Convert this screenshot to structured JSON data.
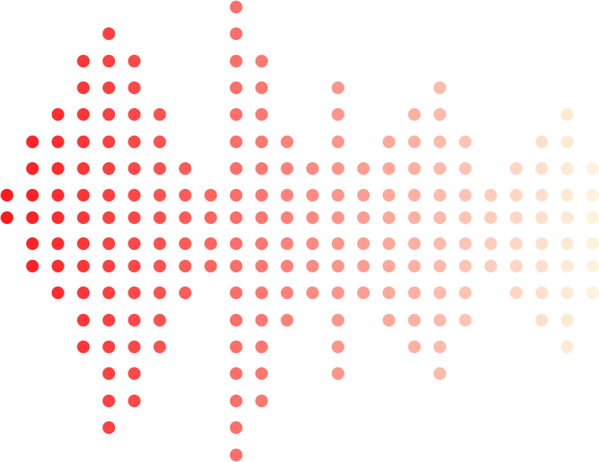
{
  "graphic": {
    "type": "dot-matrix sound wave",
    "color_start": "#ff1a1f",
    "color_end": "#fdf3dc",
    "rows": 18,
    "columns": [
      {
        "rows": [
          7,
          8
        ]
      },
      {
        "rows": [
          5,
          6,
          7,
          8,
          9,
          10
        ]
      },
      {
        "rows": [
          4,
          5,
          6,
          7,
          8,
          9,
          10,
          11
        ]
      },
      {
        "rows": [
          2,
          3,
          4,
          5,
          6,
          7,
          8,
          9,
          10,
          11,
          12,
          13
        ]
      },
      {
        "rows": [
          1,
          2,
          3,
          4,
          5,
          6,
          7,
          8,
          9,
          10,
          11,
          12,
          13,
          14,
          15,
          16
        ]
      },
      {
        "rows": [
          2,
          3,
          4,
          5,
          6,
          7,
          8,
          9,
          10,
          11,
          12,
          13,
          14,
          15
        ]
      },
      {
        "rows": [
          4,
          5,
          6,
          7,
          8,
          9,
          10,
          11,
          12,
          13
        ]
      },
      {
        "rows": [
          6,
          7,
          8,
          9,
          10,
          11
        ]
      },
      {
        "rows": [
          7,
          8,
          9,
          10
        ]
      },
      {
        "rows": [
          0,
          1,
          2,
          3,
          4,
          5,
          6,
          7,
          8,
          9,
          10,
          11,
          12,
          13,
          14,
          15,
          16,
          17
        ]
      },
      {
        "rows": [
          2,
          3,
          4,
          5,
          6,
          7,
          8,
          9,
          10,
          11,
          12,
          13,
          14,
          15
        ]
      },
      {
        "rows": [
          5,
          6,
          7,
          8,
          9,
          10,
          11,
          12
        ]
      },
      {
        "rows": [
          6,
          7,
          8,
          9,
          10,
          11
        ]
      },
      {
        "rows": [
          3,
          4,
          5,
          6,
          7,
          8,
          9,
          10,
          11,
          12,
          13,
          14
        ]
      },
      {
        "rows": [
          6,
          7,
          8,
          9,
          10,
          11
        ]
      },
      {
        "rows": [
          5,
          6,
          7,
          8,
          9,
          10,
          11,
          12
        ]
      },
      {
        "rows": [
          4,
          5,
          6,
          7,
          8,
          9,
          10,
          11,
          12,
          13
        ]
      },
      {
        "rows": [
          3,
          4,
          5,
          6,
          7,
          8,
          9,
          10,
          11,
          12,
          13,
          14
        ]
      },
      {
        "rows": [
          5,
          6,
          7,
          8,
          9,
          10,
          11,
          12
        ]
      },
      {
        "rows": [
          7,
          8,
          9,
          10
        ]
      },
      {
        "rows": [
          6,
          7,
          8,
          9,
          10,
          11
        ]
      },
      {
        "rows": [
          5,
          6,
          7,
          8,
          9,
          10,
          11,
          12
        ]
      },
      {
        "rows": [
          4,
          5,
          6,
          7,
          8,
          9,
          10,
          11,
          12,
          13
        ]
      },
      {
        "rows": [
          6,
          7,
          8,
          9,
          10,
          11
        ]
      }
    ]
  }
}
